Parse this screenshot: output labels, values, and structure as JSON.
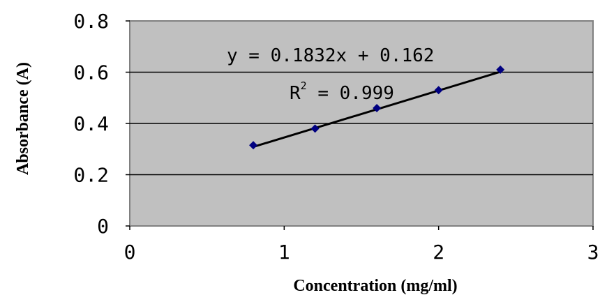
{
  "chart_data": {
    "type": "scatter",
    "title": "",
    "xlabel": "Concentration (mg/ml)",
    "ylabel": "Absorbance (A)",
    "xlim": [
      0,
      3
    ],
    "ylim": [
      0,
      0.8
    ],
    "x_ticks": [
      "0",
      "1",
      "2",
      "3"
    ],
    "y_ticks": [
      "0",
      "0.2",
      "0.4",
      "0.6",
      "0.8"
    ],
    "grid": "horizontal",
    "legend": "none",
    "series": [
      {
        "x": [
          0.8,
          1.2,
          1.6,
          2.0,
          2.4
        ],
        "y": [
          0.315,
          0.38,
          0.46,
          0.53,
          0.61
        ]
      }
    ],
    "trendline": {
      "type": "linear",
      "slope": 0.1832,
      "intercept": 0.162,
      "x_range": [
        0.8,
        2.4
      ],
      "equation_text": "y = 0.1832x + 0.162",
      "r2_label": "R",
      "r2_sup": "2",
      "r2_value_text": " = 0.999"
    },
    "colors": {
      "plot_background": "#c0c0c0",
      "marker": "#000080",
      "trendline": "#000000",
      "gridline": "#000000"
    }
  }
}
